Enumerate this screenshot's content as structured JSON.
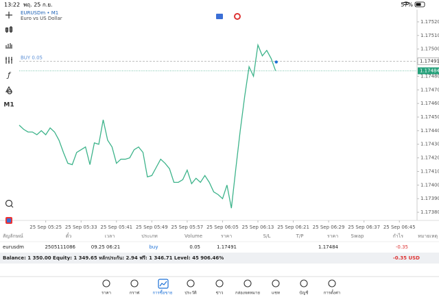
{
  "status_bar": {
    "time": "13:22",
    "date": "พฤ. 25 ก.ย.",
    "battery": "57%"
  },
  "chart_data": {
    "type": "line",
    "symbol": "EURUSDm • M1",
    "description": "Euro vs US Dollar",
    "timeframe": "M1",
    "series": [
      {
        "color": "#3cb38a",
        "values": [
          1.17444,
          1.17441,
          1.17439,
          1.17439,
          1.17437,
          1.1744,
          1.17437,
          1.17442,
          1.17439,
          1.17433,
          1.17424,
          1.17416,
          1.17415,
          1.17424,
          1.17426,
          1.17428,
          1.17415,
          1.17431,
          1.1743,
          1.17448,
          1.17433,
          1.17428,
          1.17416,
          1.17419,
          1.17419,
          1.1742,
          1.17426,
          1.17428,
          1.17424,
          1.17406,
          1.17407,
          1.17413,
          1.17419,
          1.17416,
          1.17412,
          1.17402,
          1.17402,
          1.17404,
          1.17411,
          1.17401,
          1.17405,
          1.17402,
          1.17407,
          1.17402,
          1.17395,
          1.17393,
          1.1739,
          1.174,
          1.17383,
          1.17412,
          1.1744,
          1.17465,
          1.17487,
          1.1748,
          1.17503,
          1.17495,
          1.17499,
          1.17493,
          1.17484
        ]
      }
    ],
    "xlim": [
      0,
      90
    ],
    "xticks": [
      {
        "value": 6,
        "label": "25 Sep 05:25"
      },
      {
        "value": 14,
        "label": "25 Sep 05:33"
      },
      {
        "value": 22,
        "label": "25 Sep 05:41"
      },
      {
        "value": 30,
        "label": "25 Sep 05:49"
      },
      {
        "value": 38,
        "label": "25 Sep 05:57"
      },
      {
        "value": 46,
        "label": "25 Sep 06:05"
      },
      {
        "value": 54,
        "label": "25 Sep 06:13"
      },
      {
        "value": 62,
        "label": "25 Sep 06:21"
      },
      {
        "value": 70,
        "label": "25 Sep 06:29"
      },
      {
        "value": 78,
        "label": "25 Sep 06:37"
      },
      {
        "value": 86,
        "label": "25 Sep 06:45"
      }
    ],
    "ylim": [
      1.17375,
      1.17526
    ],
    "yticks": [
      {
        "value": 1.1738,
        "label": "1.17380"
      },
      {
        "value": 1.1739,
        "label": "1.17390"
      },
      {
        "value": 1.174,
        "label": "1.17400"
      },
      {
        "value": 1.1741,
        "label": "1.17410"
      },
      {
        "value": 1.1742,
        "label": "1.17420"
      },
      {
        "value": 1.1743,
        "label": "1.17430"
      },
      {
        "value": 1.1744,
        "label": "1.17440"
      },
      {
        "value": 1.1745,
        "label": "1.17450"
      },
      {
        "value": 1.1746,
        "label": "1.17460"
      },
      {
        "value": 1.1747,
        "label": "1.17470"
      },
      {
        "value": 1.1748,
        "label": "1.17480"
      },
      {
        "value": 1.1749,
        "label": "1.17490"
      },
      {
        "value": 1.175,
        "label": "1.17500"
      },
      {
        "value": 1.1751,
        "label": "1.17510"
      },
      {
        "value": 1.1752,
        "label": "1.17520"
      }
    ],
    "order_line": {
      "label": "BUY 0.05",
      "value": 1.17491
    },
    "bid_line": {
      "value": 1.17484,
      "color": "#26a17b"
    }
  },
  "positions": {
    "columns": [
      "สัญลักษณ์",
      "ตั๋ว",
      "เวลา",
      "ประเภท",
      "Volume",
      "ราคา",
      "S/L",
      "T/P",
      "ราคา",
      "Swap",
      "กำไร",
      "หมายเหตุ"
    ],
    "rows": [
      {
        "symbol": "eurusdm",
        "ticket": "2505111086",
        "time": "09.25 06:21",
        "type": "buy",
        "volume": 0.05,
        "price": 1.17491,
        "current_price": 1.17484,
        "profit": -0.35
      }
    ]
  },
  "summary": {
    "text": "Balance: 1 350.00 Equity: 1 349.65 หลักประกัน: 2.94 ฟรี: 1 346.71 Level: 45 906.46%",
    "total": "-0.35  USD"
  },
  "nav": {
    "items": [
      "ราคา",
      "กราฟ",
      "การซื้อขาย",
      "ประวัติ",
      "ข่าว",
      "กล่องจดหมาย",
      "แชท",
      "บัญชี",
      "การตั้งค่า"
    ],
    "active": 2
  }
}
